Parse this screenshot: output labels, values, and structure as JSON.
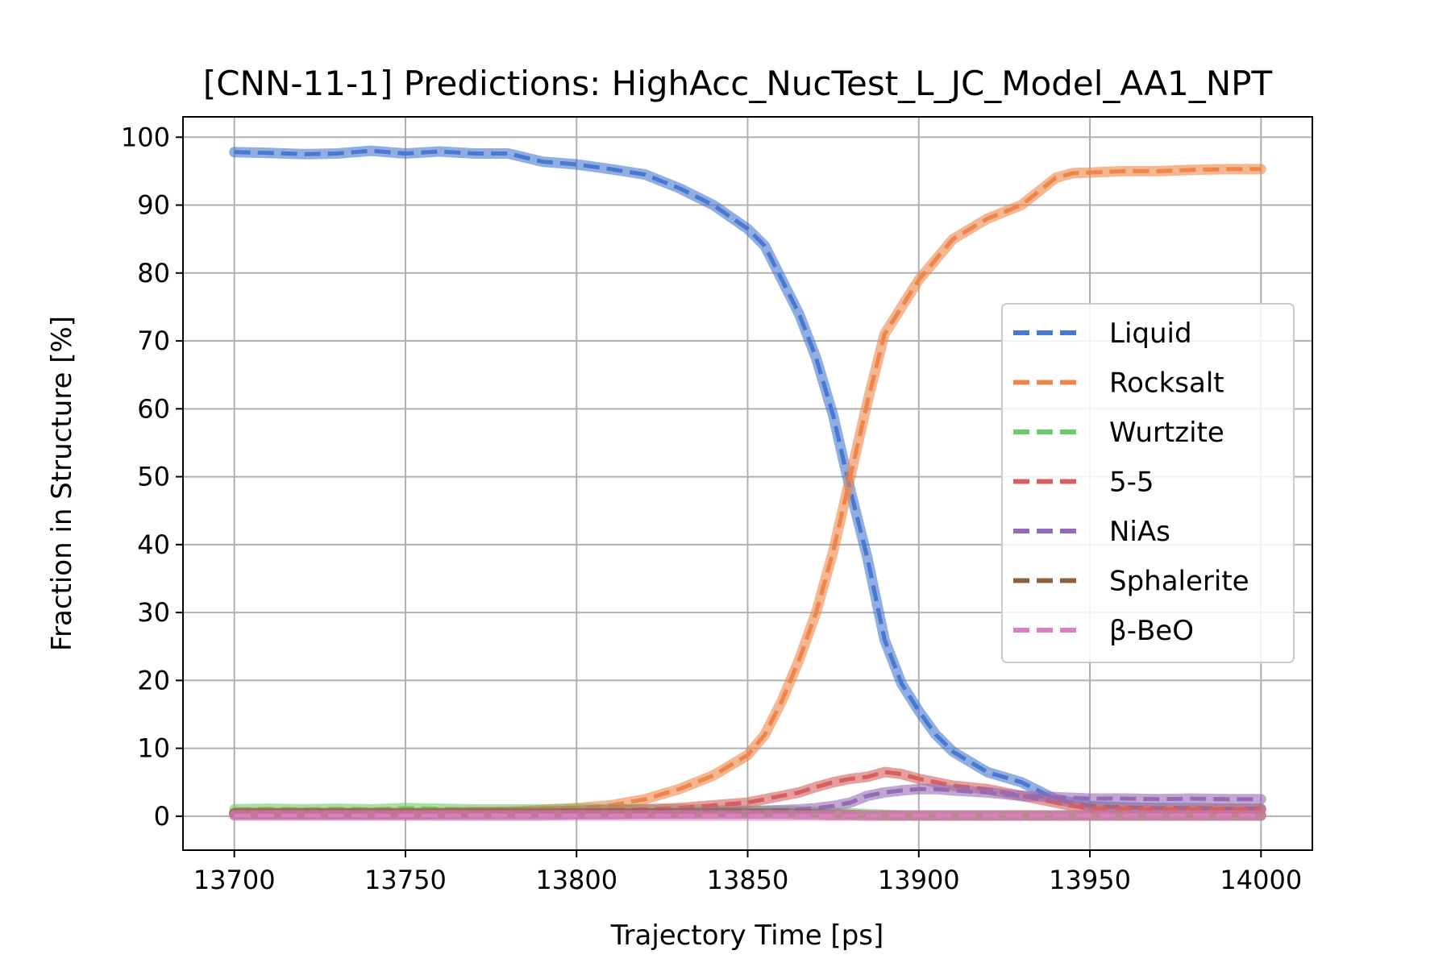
{
  "chart_data": {
    "type": "line",
    "title": "[CNN-11-1] Predictions: HighAcc_NucTest_L_JC_Model_AA1_NPT",
    "xlabel": "Trajectory Time [ps]",
    "ylabel": "Fraction in Structure [%]",
    "xlim": [
      13685,
      14015
    ],
    "ylim": [
      -5,
      103
    ],
    "xticks": [
      13700,
      13750,
      13800,
      13850,
      13900,
      13950,
      14000
    ],
    "yticks": [
      0,
      10,
      20,
      30,
      40,
      50,
      60,
      70,
      80,
      90,
      100
    ],
    "grid": true,
    "legend_position": "center-right",
    "x": [
      13700,
      13710,
      13720,
      13730,
      13740,
      13750,
      13760,
      13770,
      13780,
      13790,
      13800,
      13810,
      13820,
      13830,
      13840,
      13850,
      13855,
      13860,
      13865,
      13870,
      13875,
      13880,
      13885,
      13890,
      13895,
      13900,
      13905,
      13910,
      13920,
      13930,
      13940,
      13945,
      13950,
      13960,
      13970,
      13980,
      13990,
      14000
    ],
    "series": [
      {
        "name": "Liquid",
        "color": "#4878d0",
        "values": [
          97.8,
          97.7,
          97.5,
          97.6,
          98.0,
          97.6,
          97.9,
          97.6,
          97.6,
          96.4,
          96.0,
          95.3,
          94.5,
          92.5,
          90.0,
          86.5,
          84.0,
          79.0,
          74.0,
          67.5,
          59.0,
          48.0,
          38.0,
          26.0,
          19.5,
          15.5,
          12.0,
          9.5,
          6.5,
          5.0,
          2.5,
          2.0,
          1.5,
          1.3,
          1.2,
          1.2,
          1.1,
          1.1
        ]
      },
      {
        "name": "Rocksalt",
        "color": "#ee854a",
        "values": [
          0.3,
          0.3,
          0.3,
          0.3,
          0.3,
          0.3,
          0.4,
          0.5,
          0.6,
          0.9,
          1.2,
          1.6,
          2.5,
          4.0,
          6.0,
          9.0,
          12.0,
          17.0,
          23.0,
          30.0,
          39.0,
          50.0,
          61.0,
          71.0,
          75.0,
          79.0,
          82.0,
          85.0,
          88.0,
          90.0,
          94.0,
          94.7,
          94.8,
          95.0,
          95.0,
          95.2,
          95.3,
          95.3
        ]
      },
      {
        "name": "Wurtzite",
        "color": "#6acc64",
        "values": [
          1.0,
          1.1,
          1.0,
          1.1,
          1.0,
          1.2,
          1.1,
          1.0,
          1.0,
          1.0,
          1.1,
          1.0,
          1.0,
          1.0,
          0.9,
          0.8,
          0.8,
          0.8,
          0.7,
          0.6,
          0.5,
          0.4,
          0.3,
          0.2,
          0.1,
          0.1,
          0.1,
          0.1,
          0.1,
          0.1,
          0.1,
          0.1,
          0.1,
          0.1,
          0.1,
          0.1,
          0.1,
          0.1
        ]
      },
      {
        "name": "5-5",
        "color": "#d65f5f",
        "values": [
          0.5,
          0.5,
          0.5,
          0.5,
          0.5,
          0.5,
          0.5,
          0.6,
          0.6,
          0.7,
          0.8,
          0.9,
          1.0,
          1.2,
          1.6,
          2.0,
          2.5,
          3.0,
          3.5,
          4.3,
          5.0,
          5.5,
          5.8,
          6.5,
          6.2,
          5.5,
          5.0,
          4.5,
          4.0,
          3.0,
          2.0,
          1.5,
          1.2,
          1.1,
          1.0,
          1.0,
          1.0,
          1.0
        ]
      },
      {
        "name": "NiAs",
        "color": "#956cb4",
        "values": [
          0.2,
          0.2,
          0.2,
          0.2,
          0.2,
          0.2,
          0.2,
          0.2,
          0.2,
          0.2,
          0.3,
          0.3,
          0.4,
          0.5,
          0.6,
          0.7,
          0.8,
          0.9,
          1.0,
          1.2,
          1.5,
          2.0,
          3.0,
          3.5,
          3.8,
          4.0,
          4.0,
          3.8,
          3.5,
          3.0,
          2.8,
          2.7,
          2.6,
          2.6,
          2.5,
          2.6,
          2.5,
          2.5
        ]
      },
      {
        "name": "Sphalerite",
        "color": "#8c613c",
        "values": [
          0.4,
          0.4,
          0.4,
          0.4,
          0.4,
          0.4,
          0.4,
          0.4,
          0.4,
          0.4,
          0.4,
          0.4,
          0.4,
          0.4,
          0.4,
          0.4,
          0.4,
          0.4,
          0.3,
          0.3,
          0.2,
          0.2,
          0.1,
          0.1,
          0.1,
          0.1,
          0.1,
          0.1,
          0.1,
          0.1,
          0.1,
          0.1,
          0.1,
          0.1,
          0.1,
          0.1,
          0.1,
          0.1
        ]
      },
      {
        "name": "β-BeO",
        "color": "#dc7ec0",
        "values": [
          0.1,
          0.1,
          0.1,
          0.1,
          0.1,
          0.1,
          0.1,
          0.1,
          0.1,
          0.1,
          0.1,
          0.1,
          0.1,
          0.1,
          0.1,
          0.1,
          0.1,
          0.1,
          0.1,
          0.1,
          0.1,
          0.1,
          0.1,
          0.1,
          0.1,
          0.1,
          0.1,
          0.1,
          0.1,
          0.1,
          0.1,
          0.1,
          0.1,
          0.1,
          0.1,
          0.1,
          0.1,
          0.1
        ]
      }
    ]
  }
}
